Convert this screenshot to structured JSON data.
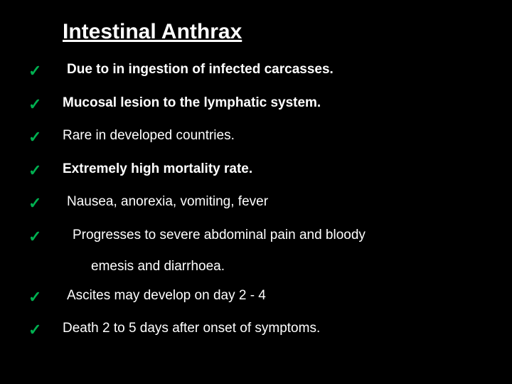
{
  "slide": {
    "title": "Intestinal Anthrax",
    "background_color": "#000000",
    "text_color": "#ffffff",
    "check_color": "#00b050",
    "title_fontsize": 30,
    "body_fontsize": 19,
    "items": [
      {
        "text": "Due to in ingestion of infected carcasses.",
        "bold": true,
        "indent": 1
      },
      {
        "text": "Mucosal lesion to the lymphatic system.",
        "bold": true,
        "indent": 0
      },
      {
        "text": "Rare in developed countries.",
        "bold": false,
        "indent": 0
      },
      {
        "text": "Extremely high mortality rate.",
        "bold": true,
        "indent": 0
      },
      {
        "text": "Nausea, anorexia, vomiting, fever",
        "bold": false,
        "indent": 1
      },
      {
        "text": "Progresses to severe abdominal pain and bloody",
        "bold": false,
        "indent": 2,
        "continuation": "emesis and diarrhoea."
      },
      {
        "text": "Ascites may develop on day 2 - 4",
        "bold": false,
        "indent": 1
      },
      {
        "text": "Death 2 to 5 days after onset of symptoms.",
        "bold": false,
        "indent": 0
      }
    ],
    "check_glyph": "✓"
  }
}
